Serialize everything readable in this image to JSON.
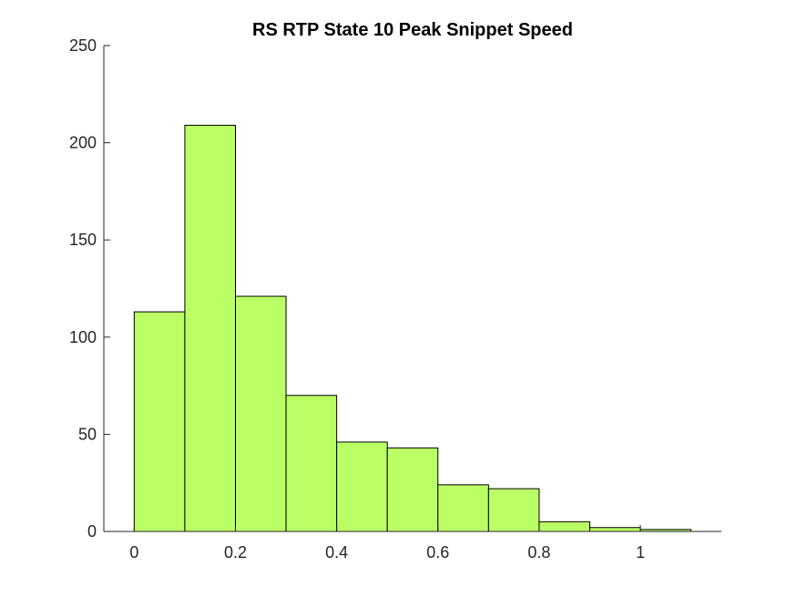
{
  "chart_data": {
    "type": "bar",
    "title": "RS  RTP State 10 Peak Snippet Speed",
    "xlabel": "",
    "ylabel": "",
    "bin_edges": [
      0,
      0.1,
      0.2,
      0.3,
      0.4,
      0.5,
      0.6,
      0.7,
      0.8,
      0.9,
      1.0,
      1.1
    ],
    "values": [
      113,
      209,
      121,
      70,
      46,
      43,
      24,
      22,
      5,
      2,
      1
    ],
    "xlim": [
      -0.06,
      1.16
    ],
    "ylim": [
      0,
      250
    ],
    "xticks": [
      0,
      0.2,
      0.4,
      0.6,
      0.8,
      1
    ],
    "xtick_labels": [
      "0",
      "0.2",
      "0.4",
      "0.6",
      "0.8",
      "1"
    ],
    "yticks": [
      0,
      50,
      100,
      150,
      200,
      250
    ],
    "ytick_labels": [
      "0",
      "50",
      "100",
      "150",
      "200",
      "250"
    ],
    "bar_color": "#bbff66",
    "edge_color": "#000000",
    "grid": false,
    "box": false
  }
}
